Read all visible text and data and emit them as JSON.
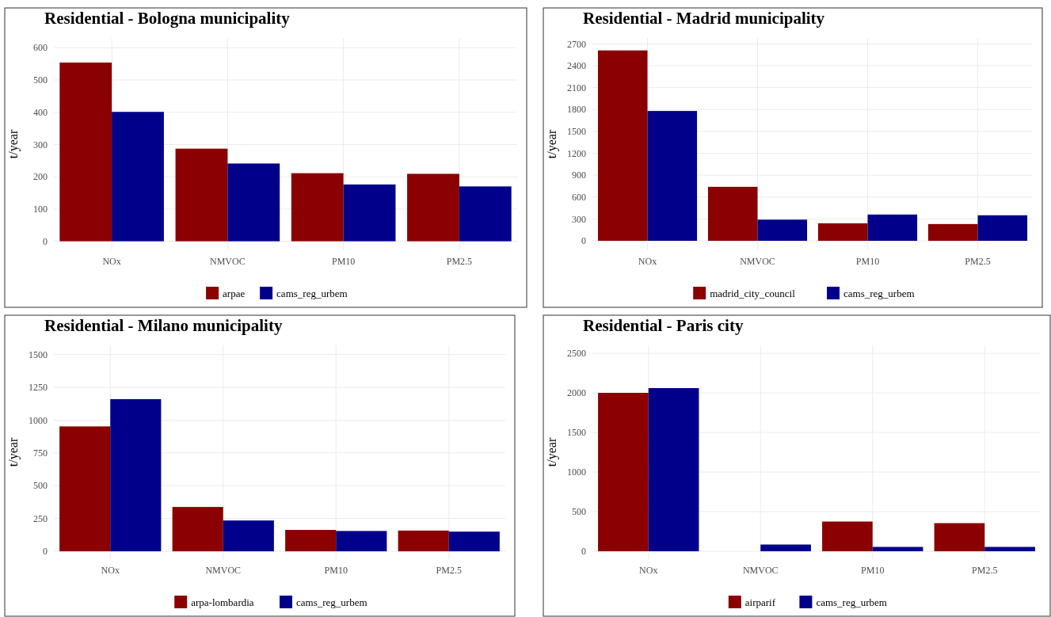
{
  "chart_data": [
    {
      "type": "bar",
      "title": "Residential - Bologna municipality",
      "ylabel": "t/year",
      "categories": [
        "NOx",
        "NMVOC",
        "PM10",
        "PM2.5"
      ],
      "series": [
        {
          "name": "arpae",
          "color": "#8b0000",
          "values": [
            554,
            287,
            211,
            209
          ]
        },
        {
          "name": "cams_reg_urbem",
          "color": "#00008b",
          "values": [
            401,
            241,
            176,
            170
          ]
        }
      ],
      "ylim": [
        -28,
        630
      ],
      "yticks": [
        0,
        100,
        200,
        300,
        400,
        500,
        600
      ],
      "grid": true,
      "legend": "bottom"
    },
    {
      "type": "bar",
      "title": "Residential - Madrid municipality",
      "ylabel": "t/year",
      "categories": [
        "NOx",
        "NMVOC",
        "PM10",
        "PM2.5"
      ],
      "series": [
        {
          "name": "madrid_city_council",
          "color": "#8b0000",
          "values": [
            2610,
            740,
            240,
            230
          ]
        },
        {
          "name": "cams_reg_urbem",
          "color": "#00008b",
          "values": [
            1780,
            290,
            360,
            350
          ]
        }
      ],
      "ylim": [
        -130,
        2780
      ],
      "yticks": [
        0,
        300,
        600,
        900,
        1200,
        1500,
        1800,
        2100,
        2400,
        2700
      ],
      "grid": true,
      "legend": "bottom"
    },
    {
      "type": "bar",
      "title": "Residential - Milano municipality",
      "ylabel": "t/year",
      "categories": [
        "NOx",
        "NMVOC",
        "PM10",
        "PM2.5"
      ],
      "series": [
        {
          "name": "arpa-lombardia",
          "color": "#8b0000",
          "values": [
            952,
            338,
            163,
            158
          ]
        },
        {
          "name": "cams_reg_urbem",
          "color": "#00008b",
          "values": [
            1160,
            235,
            155,
            150
          ]
        }
      ],
      "ylim": [
        -60,
        1570
      ],
      "yticks": [
        0,
        250,
        500,
        750,
        1000,
        1250,
        1500
      ],
      "grid": true,
      "legend": "bottom"
    },
    {
      "type": "bar",
      "title": "Residential - Paris city",
      "ylabel": "t/year",
      "categories": [
        "NOx",
        "NMVOC",
        "PM10",
        "PM2.5"
      ],
      "series": [
        {
          "name": "airparif",
          "color": "#8b0000",
          "values": [
            2000,
            null,
            375,
            355
          ]
        },
        {
          "name": "cams_reg_urbem",
          "color": "#00008b",
          "values": [
            2060,
            85,
            55,
            55
          ]
        }
      ],
      "ylim": [
        -100,
        2600
      ],
      "yticks": [
        0,
        500,
        1000,
        1500,
        2000,
        2500
      ],
      "grid": true,
      "legend": "bottom"
    }
  ]
}
